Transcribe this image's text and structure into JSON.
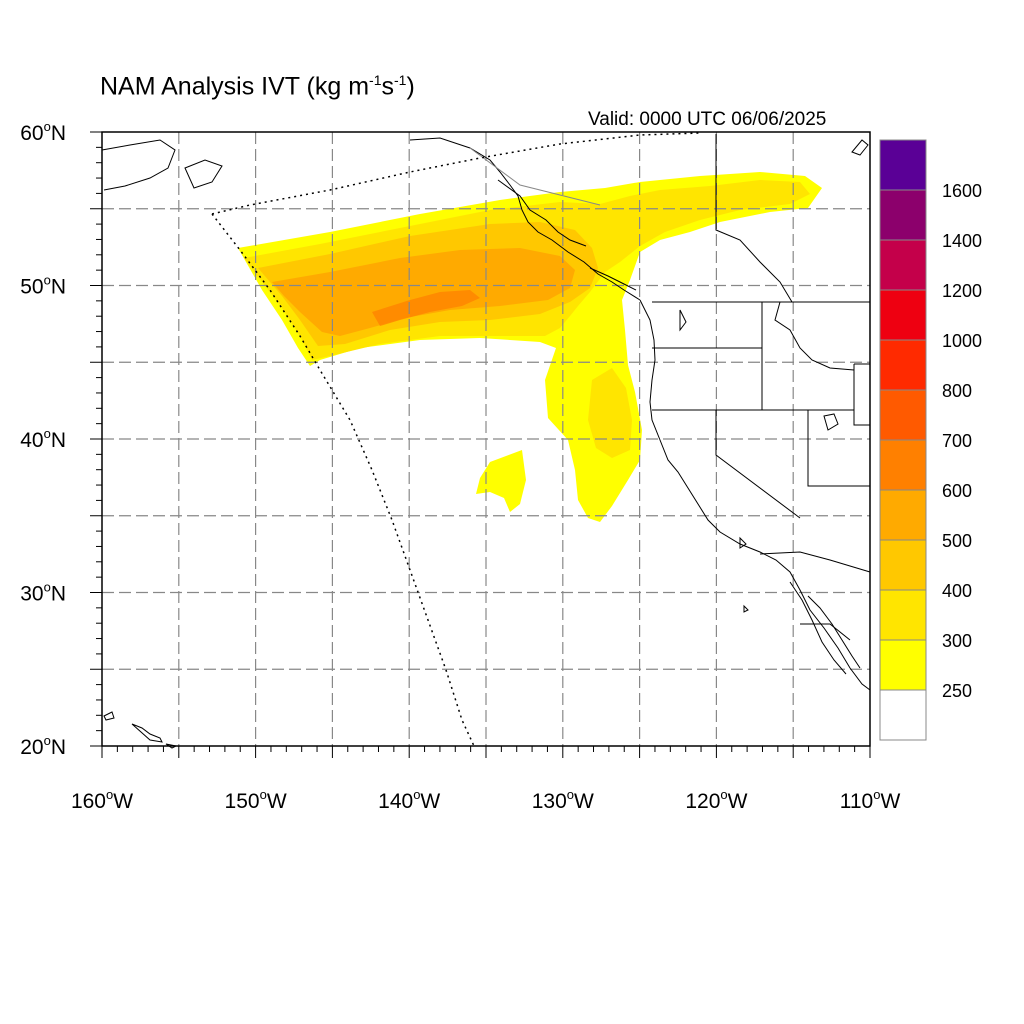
{
  "title": {
    "text": "NAM Analysis IVT (kg m",
    "sup1": "-1",
    "mid": "s",
    "sup2": "-1",
    "end": ")"
  },
  "valid": "Valid: 0000 UTC 06/06/2025",
  "map": {
    "projection": "cylindrical-equidistant",
    "lon_range": [
      -160,
      -110
    ],
    "lat_range": [
      20,
      60
    ],
    "grid": true,
    "lat_labels": [
      {
        "value": 60,
        "text": "60",
        "hemi": "N"
      },
      {
        "value": 50,
        "text": "50",
        "hemi": "N"
      },
      {
        "value": 40,
        "text": "40",
        "hemi": "N"
      },
      {
        "value": 30,
        "text": "30",
        "hemi": "N"
      },
      {
        "value": 20,
        "text": "20",
        "hemi": "N"
      }
    ],
    "lon_labels": [
      {
        "value": -160,
        "text": "160",
        "hemi": "W"
      },
      {
        "value": -150,
        "text": "150",
        "hemi": "W"
      },
      {
        "value": -140,
        "text": "140",
        "hemi": "W"
      },
      {
        "value": -130,
        "text": "130",
        "hemi": "W"
      },
      {
        "value": -120,
        "text": "120",
        "hemi": "W"
      },
      {
        "value": -110,
        "text": "110",
        "hemi": "W"
      }
    ]
  },
  "colorbar": {
    "levels": [
      "250",
      "300",
      "400",
      "500",
      "600",
      "700",
      "800",
      "1000",
      "1200",
      "1400",
      "1600"
    ],
    "colors": [
      "#ffffff",
      "#ffff00",
      "#ffe500",
      "#ffc800",
      "#ffaa00",
      "#ff8000",
      "#ff5a00",
      "#ff2a00",
      "#ee0011",
      "#c4004a",
      "#8c006c",
      "#5a0096"
    ]
  },
  "colors": {
    "fill_250": "#ffff00",
    "fill_300": "#ffe500",
    "fill_400": "#ffc800",
    "fill_500": "#ffaa00",
    "fill_600": "#ff8000",
    "coast": "#000000",
    "grid": "#888888"
  }
}
